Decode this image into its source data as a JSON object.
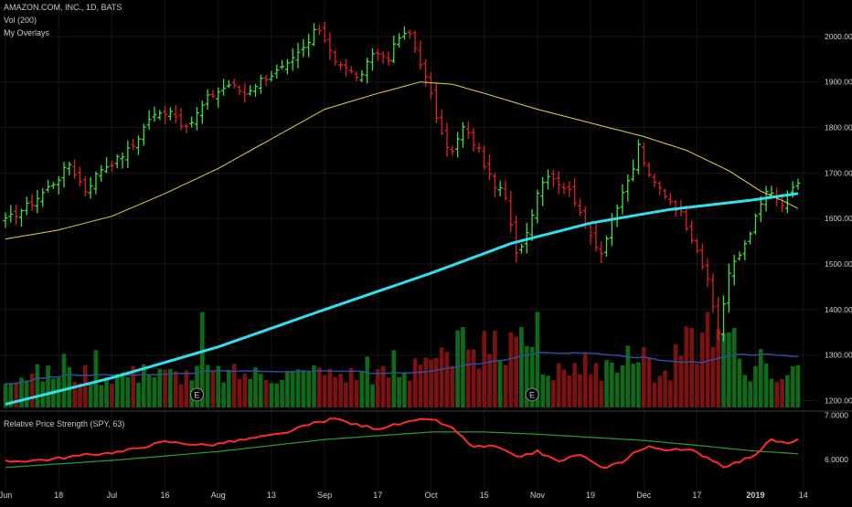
{
  "header": {
    "symbol_line": "AMAZON.COM, INC., 1D, BATS",
    "volume_line": "Vol (200)",
    "overlays_line": "My Overlays"
  },
  "indicator": {
    "title": "Relative Price Strength (SPY, 63)"
  },
  "colors": {
    "background": "#000000",
    "up": "#3fe03f",
    "down": "#e02020",
    "ma_slow": "#2fe0f0",
    "ma_fast": "#e3d24a",
    "rs_line": "#ff2b2b",
    "rs_ma": "#2e9d2e",
    "vol_up": "#0f6a17",
    "vol_down": "#7a1212",
    "vol_avg": "#2b4f9c",
    "axis_text": "#cfcfcf",
    "grid": "#161616"
  },
  "chart_data": [
    {
      "type": "candlestick",
      "title": "AMAZON.COM, INC., 1D, BATS",
      "xlabels": [
        "Jun",
        "18",
        "Jul",
        "16",
        "Aug",
        "13",
        "Sep",
        "17",
        "Oct",
        "15",
        "Nov",
        "19",
        "Dec",
        "17",
        "2019",
        "14"
      ],
      "x_tick_trading_days": [
        0,
        10,
        20,
        30,
        40,
        50,
        60,
        70,
        80,
        90,
        100,
        110,
        120,
        130,
        141,
        150
      ],
      "yticks": [
        "2000.00",
        "1900.00",
        "1800.00",
        "1700.00",
        "1600.00",
        "1500.00",
        "1400.00",
        "1300.00",
        "1200.00"
      ],
      "ylim": [
        1185,
        2060
      ],
      "close_anchors": [
        [
          0,
          1595
        ],
        [
          5,
          1635
        ],
        [
          10,
          1690
        ],
        [
          12,
          1720
        ],
        [
          15,
          1662
        ],
        [
          18,
          1710
        ],
        [
          21,
          1730
        ],
        [
          24,
          1760
        ],
        [
          27,
          1820
        ],
        [
          31,
          1840
        ],
        [
          34,
          1795
        ],
        [
          38,
          1865
        ],
        [
          42,
          1895
        ],
        [
          45,
          1875
        ],
        [
          48,
          1905
        ],
        [
          53,
          1935
        ],
        [
          57,
          1985
        ],
        [
          58,
          2015
        ],
        [
          60,
          1995
        ],
        [
          62,
          1950
        ],
        [
          65,
          1920
        ],
        [
          67,
          1910
        ],
        [
          69,
          1965
        ],
        [
          72,
          1955
        ],
        [
          74,
          1998
        ],
        [
          76,
          2005
        ],
        [
          78,
          1945
        ],
        [
          80,
          1870
        ],
        [
          82,
          1780
        ],
        [
          84,
          1745
        ],
        [
          86,
          1800
        ],
        [
          89,
          1750
        ],
        [
          91,
          1690
        ],
        [
          94,
          1645
        ],
        [
          96,
          1520
        ],
        [
          98,
          1570
        ],
        [
          100,
          1660
        ],
        [
          102,
          1700
        ],
        [
          104,
          1680
        ],
        [
          106,
          1660
        ],
        [
          108,
          1620
        ],
        [
          109,
          1580
        ],
        [
          112,
          1525
        ],
        [
          114,
          1600
        ],
        [
          116,
          1650
        ],
        [
          118,
          1710
        ],
        [
          119,
          1760
        ],
        [
          121,
          1690
        ],
        [
          123,
          1665
        ],
        [
          125,
          1640
        ],
        [
          127,
          1610
        ],
        [
          130,
          1535
        ],
        [
          132,
          1460
        ],
        [
          134,
          1350
        ],
        [
          136,
          1480
        ],
        [
          138,
          1520
        ],
        [
          141,
          1600
        ],
        [
          143,
          1660
        ],
        [
          146,
          1630
        ],
        [
          149,
          1680
        ]
      ],
      "marker_label": "E",
      "earnings_days": [
        36,
        99
      ],
      "legend": []
    },
    {
      "type": "line",
      "title": "Relative Price Strength (SPY, 63)",
      "yticks": [
        "7.0000",
        "6.0000"
      ],
      "ylim": [
        5.65,
        7.05
      ],
      "series": [
        {
          "anchors": [
            [
              0,
              5.95
            ],
            [
              8,
              6.0
            ],
            [
              15,
              6.1
            ],
            [
              22,
              6.18
            ],
            [
              30,
              6.4
            ],
            [
              38,
              6.32
            ],
            [
              45,
              6.45
            ],
            [
              52,
              6.58
            ],
            [
              58,
              6.82
            ],
            [
              62,
              6.92
            ],
            [
              66,
              6.78
            ],
            [
              70,
              6.7
            ],
            [
              75,
              6.82
            ],
            [
              80,
              6.92
            ],
            [
              84,
              6.7
            ],
            [
              88,
              6.28
            ],
            [
              92,
              6.3
            ],
            [
              96,
              6.05
            ],
            [
              100,
              6.18
            ],
            [
              104,
              5.95
            ],
            [
              108,
              6.12
            ],
            [
              112,
              5.8
            ],
            [
              116,
              5.95
            ],
            [
              118,
              6.15
            ],
            [
              121,
              6.28
            ],
            [
              125,
              6.22
            ],
            [
              129,
              6.2
            ],
            [
              132,
              6.05
            ],
            [
              135,
              5.85
            ],
            [
              138,
              5.95
            ],
            [
              141,
              6.12
            ],
            [
              144,
              6.45
            ],
            [
              147,
              6.35
            ],
            [
              150,
              6.48
            ]
          ]
        },
        {
          "anchors": [
            [
              0,
              5.82
            ],
            [
              20,
              5.98
            ],
            [
              40,
              6.18
            ],
            [
              60,
              6.45
            ],
            [
              80,
              6.62
            ],
            [
              90,
              6.62
            ],
            [
              100,
              6.57
            ],
            [
              110,
              6.5
            ],
            [
              120,
              6.43
            ],
            [
              130,
              6.32
            ],
            [
              140,
              6.2
            ],
            [
              150,
              6.12
            ]
          ]
        }
      ]
    }
  ]
}
